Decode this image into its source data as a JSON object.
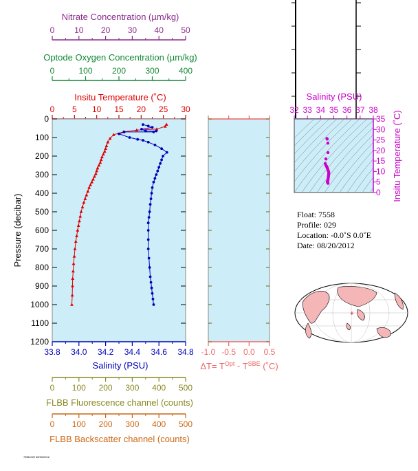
{
  "colors": {
    "nitrate": "#8a2a8a",
    "oxygen": "#118833",
    "temperature": "#dd0000",
    "salinity": "#0000bb",
    "deltaT": "#ee6666",
    "fluorescence": "#888822",
    "backscatter": "#cc6611",
    "inset": "#cc00cc",
    "panel_bg": "#cdeef8",
    "land": "#f4b6b6"
  },
  "chart_data": [
    {
      "type": "line",
      "panel": "main-profile",
      "ylabel": "Pressure (decibar)",
      "ylim": [
        1200,
        0
      ],
      "yticks": [
        "0",
        "100",
        "200",
        "300",
        "400",
        "500",
        "600",
        "700",
        "800",
        "900",
        "1000",
        "1100",
        "1200"
      ],
      "axes": {
        "nitrate": {
          "label": "Nitrate Concentration (µm/kg)",
          "range": [
            0,
            50
          ],
          "ticks": [
            "0",
            "10",
            "20",
            "30",
            "40",
            "50"
          ]
        },
        "oxygen": {
          "label": "Optode Oxygen Concentration (µm/kg)",
          "range": [
            0,
            400
          ],
          "ticks": [
            "0",
            "100",
            "200",
            "300",
            "400"
          ]
        },
        "temperature": {
          "label": "Insitu Temperature (˚C)",
          "range": [
            0,
            30
          ],
          "ticks": [
            "0",
            "5",
            "10",
            "15",
            "20",
            "25",
            "30"
          ]
        },
        "salinity": {
          "label": "Salinity (PSU)",
          "range": [
            33.8,
            34.8
          ],
          "ticks": [
            "33.8",
            "34.0",
            "34.2",
            "34.4",
            "34.6",
            "34.8"
          ]
        },
        "fluorescence": {
          "label": "FLBB Fluorescence channel (counts)",
          "range": [
            0,
            500
          ],
          "ticks": [
            "0",
            "100",
            "200",
            "300",
            "400",
            "500"
          ]
        },
        "backscatter": {
          "label": "FLBB Backscatter channel (counts)",
          "range": [
            0,
            500
          ],
          "ticks": [
            "0",
            "100",
            "200",
            "300",
            "400",
            "500"
          ]
        }
      },
      "series": [
        {
          "axis": "temperature",
          "x": [
            25.7,
            25.4,
            23.5,
            19,
            16,
            13.8,
            13,
            12.5,
            12.2,
            12.0,
            11.8,
            11.5,
            11.2,
            11.0,
            10.8,
            10.5,
            10.2,
            10.0,
            9.8,
            9.5,
            9.2,
            8.9,
            8.6,
            8.3,
            8.0,
            7.7,
            7.4,
            7.1,
            6.8,
            6.5,
            6.3,
            6.1,
            5.9,
            5.7,
            5.5,
            5.3,
            5.1,
            4.95,
            4.8,
            4.7,
            4.6,
            4.55,
            4.5,
            4.4
          ],
          "y": [
            30,
            40,
            55,
            60,
            70,
            85,
            105,
            125,
            145,
            160,
            175,
            190,
            205,
            220,
            235,
            250,
            265,
            280,
            295,
            310,
            325,
            340,
            355,
            370,
            390,
            410,
            430,
            450,
            475,
            500,
            525,
            550,
            575,
            600,
            630,
            660,
            700,
            740,
            780,
            820,
            860,
            900,
            950,
            1000
          ]
        },
        {
          "axis": "salinity",
          "x": [
            34.48,
            34.52,
            34.55,
            34.47,
            34.5,
            34.58,
            34.56,
            34.34,
            34.3,
            34.38,
            34.44,
            34.48,
            34.52,
            34.57,
            34.62,
            34.66,
            34.63,
            34.62,
            34.61,
            34.6,
            34.59,
            34.58,
            34.57,
            34.56,
            34.55,
            34.545,
            34.54,
            34.535,
            34.53,
            34.525,
            34.52,
            34.52,
            34.52,
            34.52,
            34.525,
            34.53,
            34.535,
            34.54,
            34.545,
            34.55,
            34.555,
            34.56
          ],
          "y": [
            30,
            38,
            45,
            55,
            65,
            65,
            70,
            70,
            80,
            100,
            110,
            115,
            125,
            140,
            160,
            180,
            200,
            220,
            240,
            260,
            280,
            300,
            320,
            340,
            370,
            400,
            430,
            460,
            500,
            530,
            560,
            600,
            650,
            700,
            750,
            800,
            850,
            880,
            910,
            940,
            970,
            1000
          ]
        }
      ]
    },
    {
      "type": "line",
      "panel": "delta-t",
      "xlabel": "ΔT= T",
      "xlabel_sup1": "Opt",
      "xlabel_mid": " - T",
      "xlabel_sup2": "SBE",
      "xlabel_end": " (˚C)",
      "xlim": [
        -1.0,
        0.5
      ],
      "ticks": [
        "-1.0",
        "-0.5",
        "0.0",
        "0.5"
      ],
      "series": []
    },
    {
      "type": "scatter",
      "panel": "ts-inset",
      "title": "Salinity (PSU)",
      "ylabel": "Insitu Temperature (˚C)",
      "xlim": [
        32,
        38
      ],
      "ylim": [
        0,
        35
      ],
      "xticks": [
        "32",
        "33",
        "34",
        "35",
        "36",
        "37",
        "38"
      ],
      "yticks": [
        "0",
        "5",
        "10",
        "15",
        "20",
        "25",
        "30",
        "35"
      ],
      "series": [
        {
          "x": [
            34.48,
            34.5,
            34.55,
            34.56,
            34.4,
            34.35,
            34.4,
            34.45,
            34.48,
            34.52,
            34.55,
            34.57,
            34.6,
            34.62,
            34.62,
            34.61,
            34.6,
            34.59,
            34.58,
            34.57,
            34.56,
            34.55,
            34.54,
            34.53,
            34.52,
            34.52,
            34.53,
            34.54,
            34.55,
            34.56
          ],
          "y": [
            25.7,
            25.4,
            23.5,
            19,
            16,
            13.8,
            13,
            12.5,
            12,
            11.5,
            11,
            10.5,
            10,
            9.5,
            9,
            8.5,
            8,
            7.5,
            7,
            6.5,
            6,
            5.8,
            5.6,
            5.4,
            5.2,
            5.0,
            4.8,
            4.7,
            4.6,
            4.4
          ]
        }
      ]
    }
  ],
  "info": {
    "float": "Float:  7558",
    "profile": "Profile:  029",
    "location": "Location:  -0.0˚S   0.0˚E",
    "date": "Date:  08/20/2012"
  },
  "footer": {
    "tiny_text": "7558-029 08/20/2012"
  },
  "map": {
    "marker": "+"
  }
}
